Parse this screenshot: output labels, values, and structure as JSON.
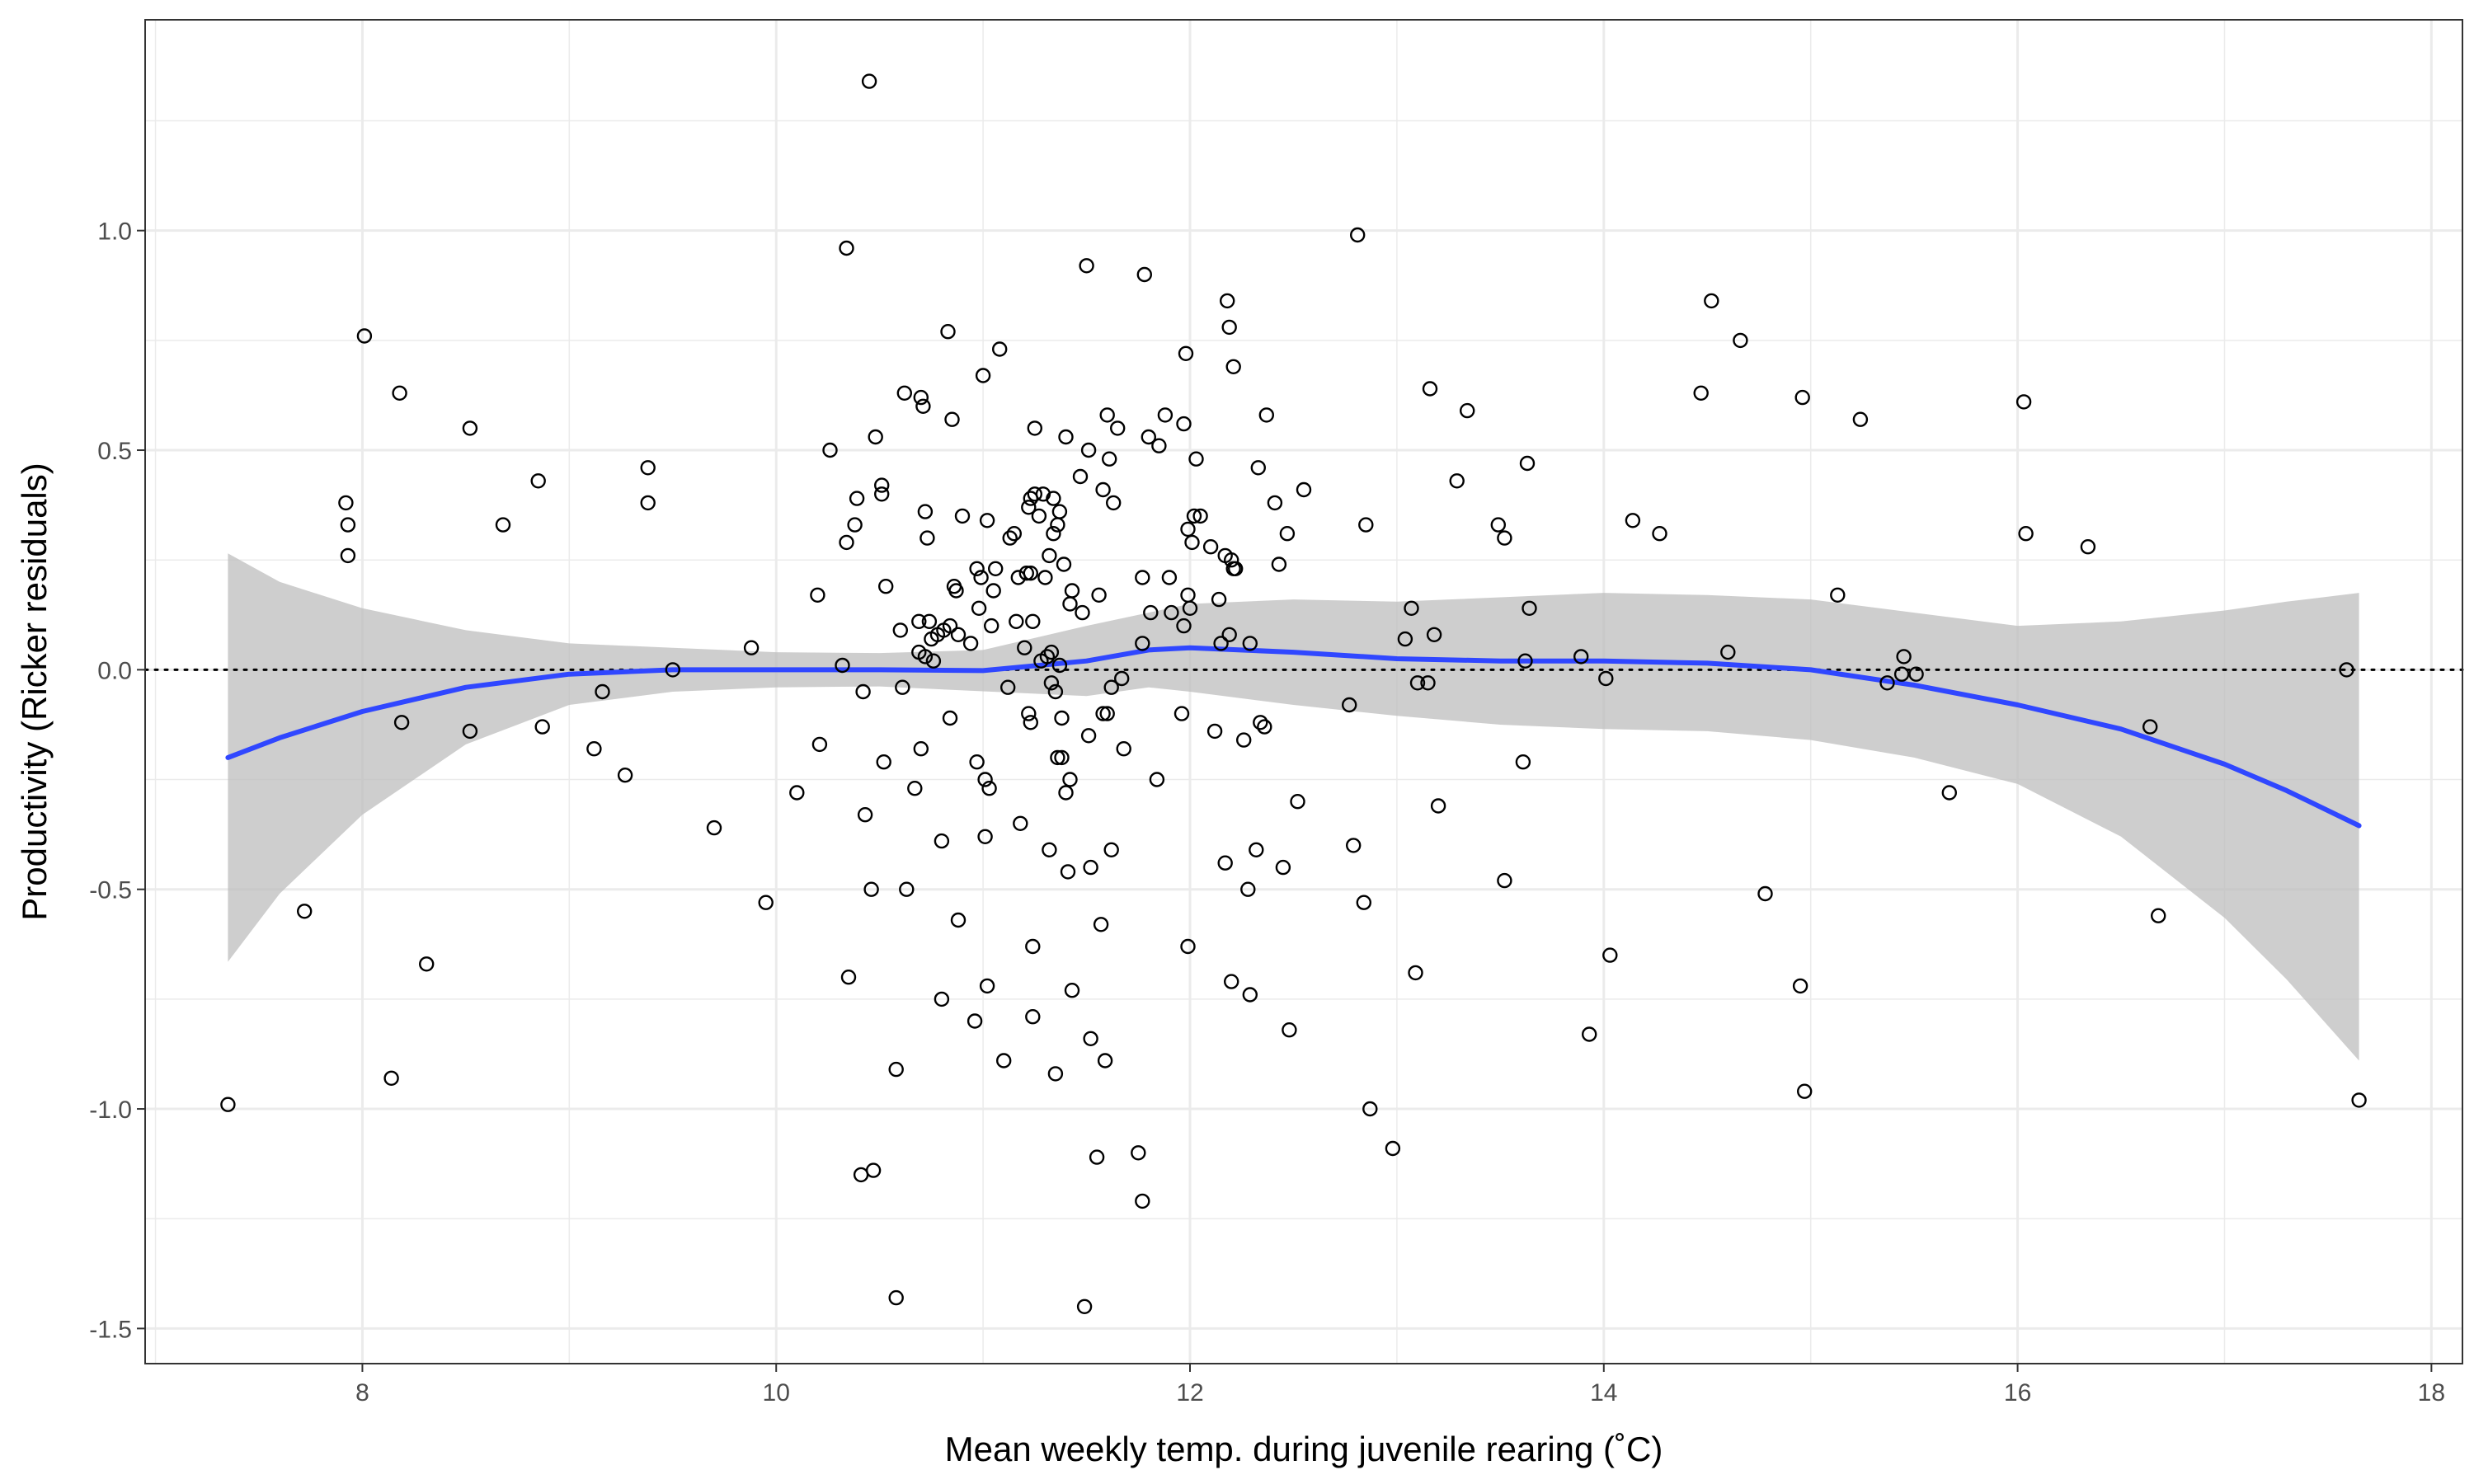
{
  "chart_data": {
    "type": "scatter",
    "title": "",
    "xlabel": "Mean weekly temp. during juvenile rearing (˚C)",
    "ylabel": "Productivity (Ricker residuals)",
    "xlim": [
      6.95,
      18.15
    ],
    "ylim": [
      -1.58,
      1.48
    ],
    "x_ticks": [
      8,
      10,
      12,
      14,
      16,
      18
    ],
    "x_tick_labels": [
      "8",
      "10",
      "12",
      "14",
      "16",
      "18"
    ],
    "y_ticks": [
      -1.5,
      -1.0,
      -0.5,
      0.0,
      0.5,
      1.0
    ],
    "y_tick_labels": [
      "-1.5",
      "-1.0",
      "-0.5",
      "0.0",
      "0.5",
      "1.0"
    ],
    "grid": true,
    "reference_line": {
      "y": 0,
      "style": "dotted"
    },
    "points": [
      [
        7.35,
        -0.99
      ],
      [
        7.72,
        -0.55
      ],
      [
        7.92,
        0.38
      ],
      [
        7.93,
        0.33
      ],
      [
        7.93,
        0.26
      ],
      [
        8.01,
        0.76
      ],
      [
        8.14,
        -0.93
      ],
      [
        8.18,
        0.63
      ],
      [
        8.19,
        -0.12
      ],
      [
        8.31,
        -0.67
      ],
      [
        8.52,
        0.55
      ],
      [
        8.52,
        -0.14
      ],
      [
        8.68,
        0.33
      ],
      [
        8.85,
        0.43
      ],
      [
        8.87,
        -0.13
      ],
      [
        9.12,
        -0.18
      ],
      [
        9.16,
        -0.05
      ],
      [
        9.27,
        -0.24
      ],
      [
        9.38,
        0.46
      ],
      [
        9.38,
        0.38
      ],
      [
        9.5,
        0.0
      ],
      [
        9.7,
        -0.36
      ],
      [
        9.88,
        0.05
      ],
      [
        9.95,
        -0.53
      ],
      [
        10.1,
        -0.28
      ],
      [
        10.2,
        0.17
      ],
      [
        10.21,
        -0.17
      ],
      [
        10.26,
        0.5
      ],
      [
        10.32,
        0.01
      ],
      [
        10.34,
        0.96
      ],
      [
        10.34,
        0.29
      ],
      [
        10.35,
        -0.7
      ],
      [
        10.38,
        0.33
      ],
      [
        10.39,
        0.39
      ],
      [
        10.41,
        -1.15
      ],
      [
        10.42,
        -0.05
      ],
      [
        10.43,
        -0.33
      ],
      [
        10.45,
        1.34
      ],
      [
        10.46,
        -0.5
      ],
      [
        10.47,
        -1.14
      ],
      [
        10.48,
        0.53
      ],
      [
        10.51,
        0.42
      ],
      [
        10.51,
        0.4
      ],
      [
        10.52,
        -0.21
      ],
      [
        10.53,
        0.19
      ],
      [
        10.58,
        -0.91
      ],
      [
        10.58,
        -1.43
      ],
      [
        10.6,
        0.09
      ],
      [
        10.61,
        -0.04
      ],
      [
        10.62,
        0.63
      ],
      [
        10.63,
        -0.5
      ],
      [
        10.67,
        -0.27
      ],
      [
        10.69,
        0.11
      ],
      [
        10.69,
        0.04
      ],
      [
        10.7,
        -0.18
      ],
      [
        10.7,
        0.62
      ],
      [
        10.71,
        0.6
      ],
      [
        10.72,
        0.03
      ],
      [
        10.72,
        0.36
      ],
      [
        10.73,
        0.3
      ],
      [
        10.74,
        0.11
      ],
      [
        10.75,
        0.07
      ],
      [
        10.76,
        0.02
      ],
      [
        10.78,
        0.08
      ],
      [
        10.8,
        -0.39
      ],
      [
        10.8,
        -0.75
      ],
      [
        10.81,
        0.09
      ],
      [
        10.83,
        0.77
      ],
      [
        10.84,
        -0.11
      ],
      [
        10.84,
        0.1
      ],
      [
        10.85,
        0.57
      ],
      [
        10.86,
        0.19
      ],
      [
        10.87,
        0.18
      ],
      [
        10.88,
        0.08
      ],
      [
        10.88,
        -0.57
      ],
      [
        10.9,
        0.35
      ],
      [
        10.94,
        0.06
      ],
      [
        10.96,
        -0.8
      ],
      [
        10.97,
        -0.21
      ],
      [
        10.97,
        0.23
      ],
      [
        10.98,
        0.14
      ],
      [
        10.99,
        0.21
      ],
      [
        11.0,
        0.67
      ],
      [
        11.01,
        -0.25
      ],
      [
        11.01,
        -0.38
      ],
      [
        11.02,
        0.34
      ],
      [
        11.02,
        -0.72
      ],
      [
        11.03,
        -0.27
      ],
      [
        11.04,
        0.1
      ],
      [
        11.05,
        0.18
      ],
      [
        11.06,
        0.23
      ],
      [
        11.08,
        0.73
      ],
      [
        11.1,
        -0.89
      ],
      [
        11.12,
        -0.04
      ],
      [
        11.13,
        0.3
      ],
      [
        11.15,
        0.31
      ],
      [
        11.16,
        0.11
      ],
      [
        11.17,
        0.21
      ],
      [
        11.18,
        -0.35
      ],
      [
        11.2,
        0.05
      ],
      [
        11.21,
        0.22
      ],
      [
        11.22,
        0.37
      ],
      [
        11.22,
        -0.1
      ],
      [
        11.23,
        -0.12
      ],
      [
        11.23,
        0.22
      ],
      [
        11.23,
        0.39
      ],
      [
        11.24,
        0.11
      ],
      [
        11.24,
        -0.79
      ],
      [
        11.24,
        -0.63
      ],
      [
        11.25,
        0.4
      ],
      [
        11.25,
        0.55
      ],
      [
        11.27,
        0.35
      ],
      [
        11.28,
        0.02
      ],
      [
        11.29,
        0.4
      ],
      [
        11.3,
        0.21
      ],
      [
        11.31,
        0.03
      ],
      [
        11.32,
        -0.41
      ],
      [
        11.32,
        0.26
      ],
      [
        11.33,
        0.04
      ],
      [
        11.33,
        -0.03
      ],
      [
        11.34,
        0.31
      ],
      [
        11.34,
        0.39
      ],
      [
        11.35,
        -0.92
      ],
      [
        11.35,
        -0.05
      ],
      [
        11.36,
        0.33
      ],
      [
        11.36,
        -0.2
      ],
      [
        11.37,
        0.36
      ],
      [
        11.37,
        0.01
      ],
      [
        11.38,
        -0.2
      ],
      [
        11.38,
        -0.11
      ],
      [
        11.39,
        0.24
      ],
      [
        11.4,
        -0.28
      ],
      [
        11.4,
        0.53
      ],
      [
        11.41,
        -0.46
      ],
      [
        11.42,
        -0.25
      ],
      [
        11.42,
        0.15
      ],
      [
        11.43,
        -0.73
      ],
      [
        11.43,
        0.18
      ],
      [
        11.47,
        0.44
      ],
      [
        11.48,
        0.13
      ],
      [
        11.49,
        -1.45
      ],
      [
        11.5,
        0.92
      ],
      [
        11.51,
        0.5
      ],
      [
        11.51,
        -0.15
      ],
      [
        11.52,
        -0.84
      ],
      [
        11.52,
        -0.45
      ],
      [
        11.55,
        -1.11
      ],
      [
        11.56,
        0.17
      ],
      [
        11.57,
        -0.58
      ],
      [
        11.58,
        0.41
      ],
      [
        11.58,
        -0.1
      ],
      [
        11.59,
        -0.89
      ],
      [
        11.6,
        -0.1
      ],
      [
        11.6,
        0.58
      ],
      [
        11.61,
        0.48
      ],
      [
        11.62,
        -0.41
      ],
      [
        11.62,
        -0.04
      ],
      [
        11.63,
        0.38
      ],
      [
        11.65,
        0.55
      ],
      [
        11.67,
        -0.02
      ],
      [
        11.68,
        -0.18
      ],
      [
        11.75,
        -1.1
      ],
      [
        11.77,
        -1.21
      ],
      [
        11.77,
        0.06
      ],
      [
        11.77,
        0.21
      ],
      [
        11.78,
        0.9
      ],
      [
        11.8,
        0.53
      ],
      [
        11.81,
        0.13
      ],
      [
        11.84,
        -0.25
      ],
      [
        11.85,
        0.51
      ],
      [
        11.88,
        0.58
      ],
      [
        11.9,
        0.21
      ],
      [
        11.91,
        0.13
      ],
      [
        11.96,
        -0.1
      ],
      [
        11.97,
        0.56
      ],
      [
        11.97,
        0.1
      ],
      [
        11.98,
        0.72
      ],
      [
        11.99,
        0.17
      ],
      [
        11.99,
        0.32
      ],
      [
        11.99,
        -0.63
      ],
      [
        12.0,
        0.14
      ],
      [
        12.01,
        0.29
      ],
      [
        12.02,
        0.35
      ],
      [
        12.03,
        0.48
      ],
      [
        12.05,
        0.35
      ],
      [
        12.1,
        0.28
      ],
      [
        12.12,
        -0.14
      ],
      [
        12.14,
        0.16
      ],
      [
        12.15,
        0.06
      ],
      [
        12.17,
        -0.44
      ],
      [
        12.17,
        0.26
      ],
      [
        12.18,
        0.84
      ],
      [
        12.19,
        0.78
      ],
      [
        12.19,
        0.08
      ],
      [
        12.2,
        0.25
      ],
      [
        12.2,
        -0.71
      ],
      [
        12.21,
        0.69
      ],
      [
        12.21,
        0.23
      ],
      [
        12.22,
        0.23
      ],
      [
        12.26,
        -0.16
      ],
      [
        12.28,
        -0.5
      ],
      [
        12.29,
        0.06
      ],
      [
        12.29,
        -0.74
      ],
      [
        12.32,
        -0.41
      ],
      [
        12.33,
        0.46
      ],
      [
        12.34,
        -0.12
      ],
      [
        12.36,
        -0.13
      ],
      [
        12.37,
        0.58
      ],
      [
        12.41,
        0.38
      ],
      [
        12.43,
        0.24
      ],
      [
        12.45,
        -0.45
      ],
      [
        12.47,
        0.31
      ],
      [
        12.48,
        -0.82
      ],
      [
        12.52,
        -0.3
      ],
      [
        12.55,
        0.41
      ],
      [
        12.77,
        -0.08
      ],
      [
        12.79,
        -0.4
      ],
      [
        12.81,
        0.99
      ],
      [
        12.84,
        -0.53
      ],
      [
        12.85,
        0.33
      ],
      [
        12.87,
        -1.0
      ],
      [
        12.98,
        -1.09
      ],
      [
        13.04,
        0.07
      ],
      [
        13.07,
        0.14
      ],
      [
        13.09,
        -0.69
      ],
      [
        13.1,
        -0.03
      ],
      [
        13.15,
        -0.03
      ],
      [
        13.16,
        0.64
      ],
      [
        13.18,
        0.08
      ],
      [
        13.2,
        -0.31
      ],
      [
        13.29,
        0.43
      ],
      [
        13.34,
        0.59
      ],
      [
        13.49,
        0.33
      ],
      [
        13.52,
        0.3
      ],
      [
        13.52,
        -0.48
      ],
      [
        13.61,
        -0.21
      ],
      [
        13.62,
        0.02
      ],
      [
        13.63,
        0.47
      ],
      [
        13.64,
        0.14
      ],
      [
        13.89,
        0.03
      ],
      [
        13.93,
        -0.83
      ],
      [
        14.01,
        -0.02
      ],
      [
        14.03,
        -0.65
      ],
      [
        14.14,
        0.34
      ],
      [
        14.27,
        0.31
      ],
      [
        14.47,
        0.63
      ],
      [
        14.52,
        0.84
      ],
      [
        14.6,
        0.04
      ],
      [
        14.66,
        0.75
      ],
      [
        14.78,
        -0.51
      ],
      [
        14.95,
        -0.72
      ],
      [
        14.96,
        0.62
      ],
      [
        14.97,
        -0.96
      ],
      [
        15.13,
        0.17
      ],
      [
        15.24,
        0.57
      ],
      [
        15.37,
        -0.03
      ],
      [
        15.44,
        -0.01
      ],
      [
        15.45,
        0.03
      ],
      [
        15.51,
        -0.01
      ],
      [
        15.67,
        -0.28
      ],
      [
        16.03,
        0.61
      ],
      [
        16.04,
        0.31
      ],
      [
        16.34,
        0.28
      ],
      [
        16.64,
        -0.13
      ],
      [
        16.68,
        -0.56
      ],
      [
        17.59,
        0.0
      ],
      [
        17.65,
        -0.98
      ]
    ],
    "smooth_fit": {
      "method": "loess",
      "x": [
        7.35,
        7.6,
        8.0,
        8.5,
        9.0,
        9.5,
        10.0,
        10.5,
        11.0,
        11.5,
        11.8,
        12.0,
        12.5,
        13.0,
        13.5,
        14.0,
        14.5,
        15.0,
        15.5,
        16.0,
        16.5,
        17.0,
        17.3,
        17.65
      ],
      "y": [
        -0.2,
        -0.155,
        -0.095,
        -0.04,
        -0.01,
        0.0,
        0.0,
        0.0,
        -0.002,
        0.02,
        0.045,
        0.05,
        0.04,
        0.025,
        0.02,
        0.02,
        0.015,
        0.0,
        -0.035,
        -0.08,
        -0.135,
        -0.215,
        -0.275,
        -0.355
      ],
      "upper": [
        0.265,
        0.2,
        0.14,
        0.09,
        0.06,
        0.05,
        0.04,
        0.038,
        0.045,
        0.1,
        0.13,
        0.15,
        0.16,
        0.155,
        0.165,
        0.175,
        0.17,
        0.16,
        0.13,
        0.1,
        0.11,
        0.135,
        0.155,
        0.175
      ],
      "lower": [
        -0.665,
        -0.51,
        -0.33,
        -0.17,
        -0.08,
        -0.05,
        -0.04,
        -0.038,
        -0.049,
        -0.06,
        -0.04,
        -0.05,
        -0.08,
        -0.105,
        -0.125,
        -0.135,
        -0.14,
        -0.16,
        -0.2,
        -0.26,
        -0.38,
        -0.565,
        -0.705,
        -0.89
      ]
    },
    "colors": {
      "fit_line": "#3047ff",
      "confidence_band": "#bebebe",
      "points": "#000000",
      "grid": "#ebebeb",
      "frame": "#333333"
    }
  }
}
